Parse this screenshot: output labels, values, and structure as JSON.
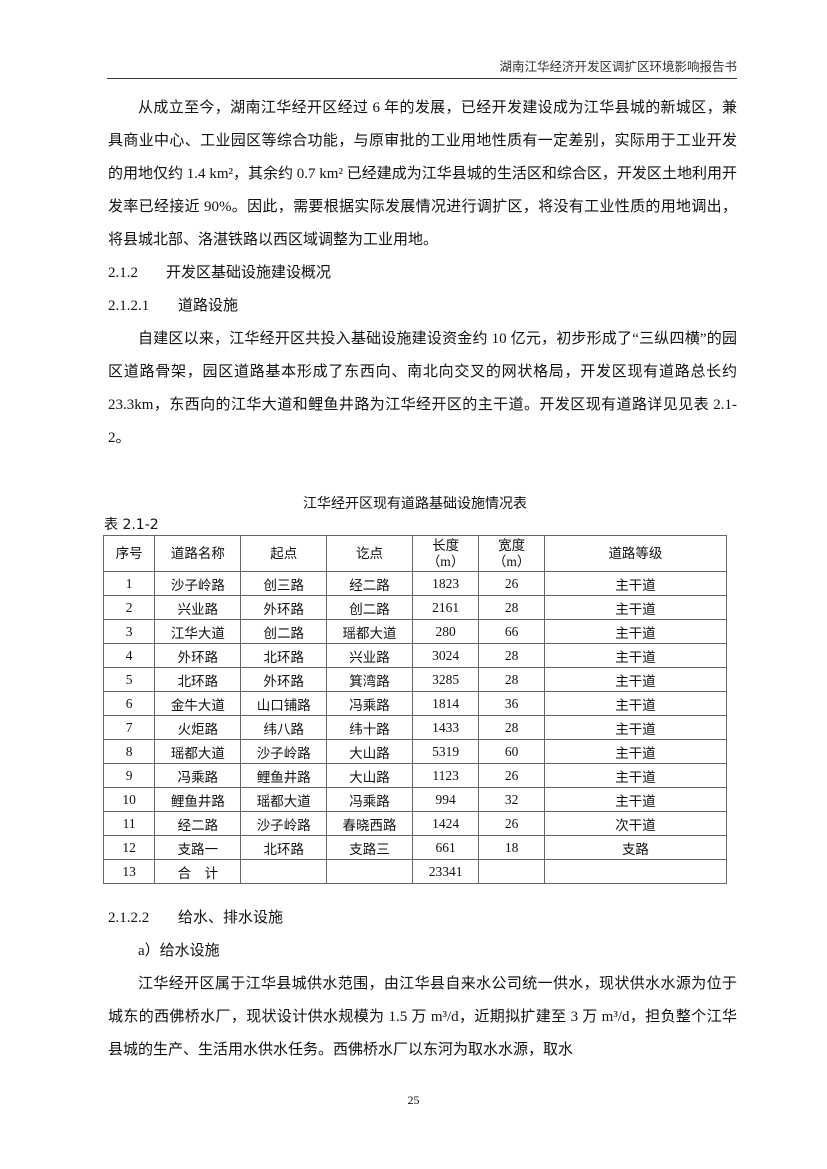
{
  "header": {
    "title": "湖南江华经济开发区调扩区环境影响报告书"
  },
  "para1": "从成立至今，湖南江华经开区经过 6 年的发展，已经开发建设成为江华县城的新城区，兼具商业中心、工业园区等综合功能，与原审批的工业用地性质有一定差别，实际用于工业开发的用地仅约 1.4 km²，其余约 0.7 km² 已经建成为江华县城的生活区和综合区，开发区土地利用开发率已经接近 90%。因此，需要根据实际发展情况进行调扩区，将没有工业性质的用地调出，将县城北部、洛湛铁路以西区域调整为工业用地。",
  "section_212": {
    "num": "2.1.2",
    "title": "开发区基础设施建设概况"
  },
  "section_2121": {
    "num": "2.1.2.1",
    "title": "道路设施"
  },
  "para2": "自建区以来，江华经开区共投入基础设施建设资金约 10 亿元，初步形成了“三纵四横”的园区道路骨架，园区道路基本形成了东西向、南北向交叉的网状格局，开发区现有道路总长约 23.3km，东西向的江华大道和鲤鱼井路为江华经开区的主干道。开发区现有道路详见见表 2.1-2。",
  "table": {
    "caption": "江华经开区现有道路基础设施情况表",
    "label": "表 2.1-2",
    "headers": [
      "序号",
      "道路名称",
      "起点",
      "讫点",
      "长度（m）",
      "宽度（m）",
      "道路等级"
    ],
    "rows": [
      [
        "1",
        "沙子岭路",
        "创三路",
        "经二路",
        "1823",
        "26",
        "主干道"
      ],
      [
        "2",
        "兴业路",
        "外环路",
        "创二路",
        "2161",
        "28",
        "主干道"
      ],
      [
        "3",
        "江华大道",
        "创二路",
        "瑶都大道",
        "280",
        "66",
        "主干道"
      ],
      [
        "4",
        "外环路",
        "北环路",
        "兴业路",
        "3024",
        "28",
        "主干道"
      ],
      [
        "5",
        "北环路",
        "外环路",
        "箕湾路",
        "3285",
        "28",
        "主干道"
      ],
      [
        "6",
        "金牛大道",
        "山口铺路",
        "冯乘路",
        "1814",
        "36",
        "主干道"
      ],
      [
        "7",
        "火炬路",
        "纬八路",
        "纬十路",
        "1433",
        "28",
        "主干道"
      ],
      [
        "8",
        "瑶都大道",
        "沙子岭路",
        "大山路",
        "5319",
        "60",
        "主干道"
      ],
      [
        "9",
        "冯乘路",
        "鲤鱼井路",
        "大山路",
        "1123",
        "26",
        "主干道"
      ],
      [
        "10",
        "鲤鱼井路",
        "瑶都大道",
        "冯乘路",
        "994",
        "32",
        "主干道"
      ],
      [
        "11",
        "经二路",
        "沙子岭路",
        "春晓西路",
        "1424",
        "26",
        "次干道"
      ],
      [
        "12",
        "支路一",
        "北环路",
        "支路三",
        "661",
        "18",
        "支路"
      ],
      [
        "13",
        "合　计",
        "",
        "",
        "23341",
        "",
        ""
      ]
    ]
  },
  "section_2122": {
    "num": "2.1.2.2",
    "title": "给水、排水设施"
  },
  "sub_a": "a）给水设施",
  "para3": "江华经开区属于江华县城供水范围，由江华县自来水公司统一供水，现状供水水源为位于城东的西佛桥水厂，现状设计供水规模为 1.5 万 m³/d，近期拟扩建至 3 万 m³/d，担负整个江华县城的生产、生活用水供水任务。西佛桥水厂以东河为取水水源，取水",
  "page_number": "25"
}
